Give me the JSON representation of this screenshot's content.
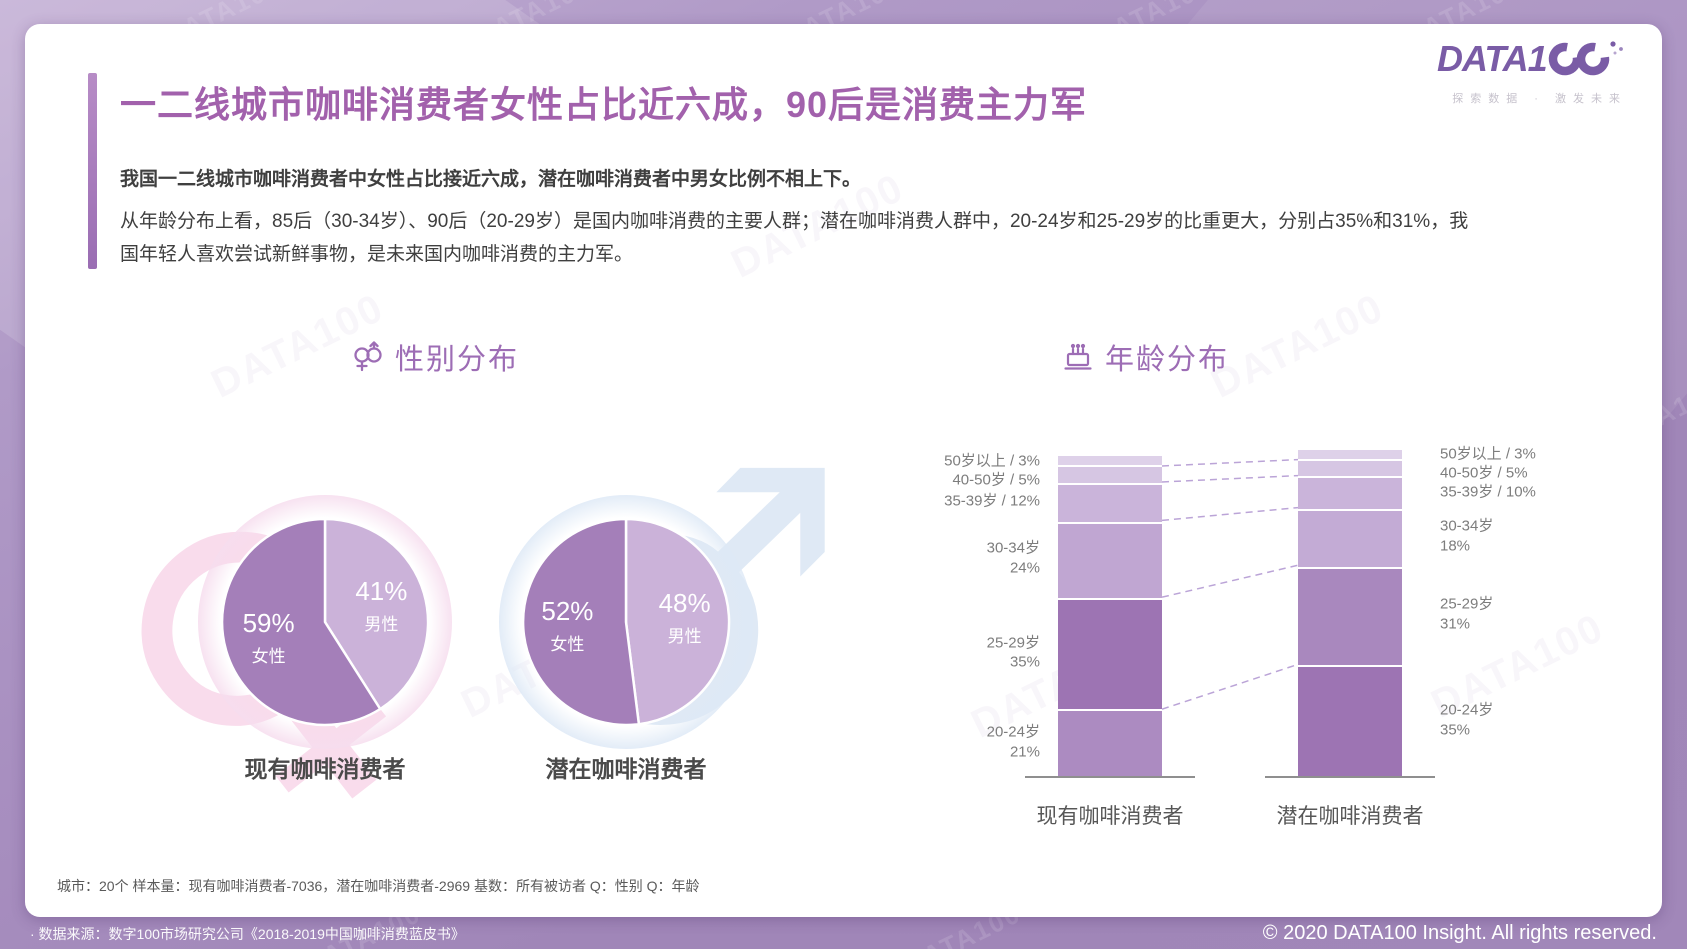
{
  "header": {
    "title": "一二线城市咖啡消费者女性占比近六成，90后是消费主力军",
    "paragraph1": "我国一二线城市咖啡消费者中女性占比接近六成，潜在咖啡消费者中男女比例不相上下。",
    "paragraph2": "从年龄分布上看，85后（30-34岁）、90后（20-29岁）是国内咖啡消费的主要人群；潜在咖啡消费人群中，20-24岁和25-29岁的比重更大，分别占35%和31%，我国年轻人喜欢尝试新鲜事物，是未来国内咖啡消费的主力军。"
  },
  "logo": {
    "brand": "DATA100",
    "tagline": "探索数据 · 激发未来"
  },
  "sections": {
    "gender": {
      "title": "性别分布",
      "pie_labels": [
        "现有咖啡消费者",
        "潜在咖啡消费者"
      ]
    },
    "age": {
      "title": "年龄分布",
      "bar_labels": [
        "现有咖啡消费者",
        "潜在咖啡消费者"
      ]
    }
  },
  "chart_data": [
    {
      "type": "pie",
      "title": "性别分布",
      "group": "现有咖啡消费者",
      "start": "top",
      "direction": "clockwise",
      "slices": [
        {
          "label": "男性",
          "value": 41,
          "display": "41%",
          "color": "#cbb2d9"
        },
        {
          "label": "女性",
          "value": 59,
          "display": "59%",
          "color": "#a47fb9"
        }
      ]
    },
    {
      "type": "pie",
      "title": "性别分布",
      "group": "潜在咖啡消费者",
      "start": "top",
      "direction": "clockwise",
      "slices": [
        {
          "label": "男性",
          "value": 48,
          "display": "48%",
          "color": "#cbb2d9"
        },
        {
          "label": "女性",
          "value": 52,
          "display": "52%",
          "color": "#a47fb9"
        }
      ]
    },
    {
      "type": "bar",
      "subtype": "stacked-column",
      "title": "年龄分布",
      "group": "现有咖啡消费者",
      "unit": "%",
      "segments_top_to_bottom": [
        {
          "label": "50岁以上",
          "value": 3,
          "label_lines": [
            "50岁以上 / 3%"
          ],
          "color": "#ded1e9"
        },
        {
          "label": "40-50岁",
          "value": 5,
          "label_lines": [
            "40-50岁 / 5%"
          ],
          "color": "#d6c6e3"
        },
        {
          "label": "35-39岁",
          "value": 12,
          "label_lines": [
            "35-39岁 / 12%"
          ],
          "color": "#cab4da"
        },
        {
          "label": "30-34岁",
          "value": 24,
          "label_lines": [
            "30-34岁",
            "24%"
          ],
          "color": "#c0a6d2"
        },
        {
          "label": "25-29岁",
          "value": 35,
          "label_lines": [
            "25-29岁",
            "35%"
          ],
          "color": "#9d74b3"
        },
        {
          "label": "20-24岁",
          "value": 21,
          "label_lines": [
            "20-24岁",
            "21%"
          ],
          "color": "#ac8bc1"
        }
      ]
    },
    {
      "type": "bar",
      "subtype": "stacked-column",
      "title": "年龄分布",
      "group": "潜在咖啡消费者",
      "unit": "%",
      "segments_top_to_bottom": [
        {
          "label": "50岁以上",
          "value": 3,
          "label_lines": [
            "50岁以上 / 3%"
          ],
          "color": "#ded1e9"
        },
        {
          "label": "40-50岁",
          "value": 5,
          "label_lines": [
            "40-50岁 / 5%"
          ],
          "color": "#d6c6e3"
        },
        {
          "label": "35-39岁",
          "value": 10,
          "label_lines": [
            "35-39岁 / 10%"
          ],
          "color": "#cab4da"
        },
        {
          "label": "30-34岁",
          "value": 18,
          "label_lines": [
            "30-34岁",
            "18%"
          ],
          "color": "#c3abd5"
        },
        {
          "label": "25-29岁",
          "value": 31,
          "label_lines": [
            "25-29岁",
            "31%"
          ],
          "color": "#a988be"
        },
        {
          "label": "20-24岁",
          "value": 35,
          "label_lines": [
            "20-24岁",
            "35%"
          ],
          "color": "#9d74b3"
        }
      ]
    }
  ],
  "footnote": "城市：20个  样本量：现有咖啡消费者-7036，潜在咖啡消费者-2969  基数：所有被访者     Q：性别  Q：年龄",
  "footer": {
    "source": "· 数据来源：数字100市场研究公司《2018-2019中国咖啡消费蓝皮书》",
    "copyright": "© 2020 DATA100 Insight. All rights reserved."
  },
  "decor": {
    "watermark": "DATA100"
  },
  "colors": {
    "accent_title": "#a261ac",
    "chart_title": "#9d6db5",
    "frame": "#a88fc0",
    "pie_dark": "#a47fb9",
    "pie_light": "#cbb2d9"
  }
}
